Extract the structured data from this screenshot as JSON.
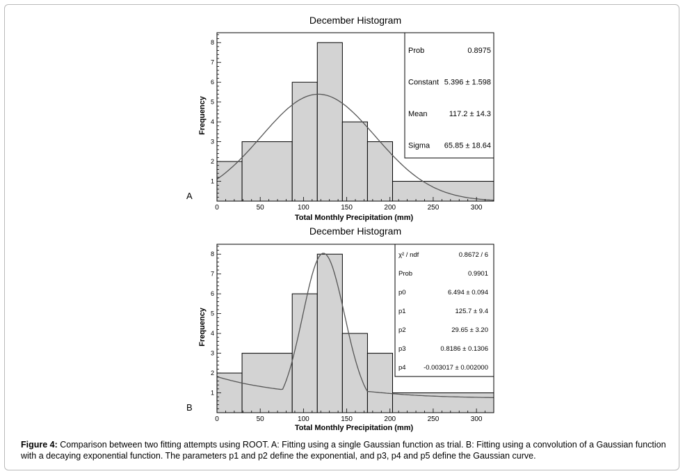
{
  "caption": {
    "label": "Figure 4:",
    "text": " Comparison between two fitting attempts using ROOT. A: Fitting using a single Gaussian function as trial. B: Fitting using a convolution of a Gaussian function with a decaying exponential function. The parameters p1 and p2 define the exponential, and p3, p4 and p5 define the Gaussian curve."
  },
  "colors": {
    "bar_fill": "#d3d3d3",
    "stroke": "#000000",
    "curve": "#555555"
  },
  "chart_data": [
    {
      "type": "bar",
      "panel_label": "A",
      "title": "December Histogram",
      "xlabel": "Total Monthly Precipitation (mm)",
      "ylabel": "Frequency",
      "xlim": [
        0,
        320
      ],
      "ylim": [
        0,
        8.5
      ],
      "xticks": [
        0,
        50,
        100,
        150,
        200,
        250,
        300
      ],
      "yticks": [
        1,
        2,
        3,
        4,
        5,
        6,
        7,
        8
      ],
      "bins": [
        {
          "x0": 0,
          "x1": 29,
          "count": 2
        },
        {
          "x0": 29,
          "x1": 87,
          "count": 3
        },
        {
          "x0": 87,
          "x1": 116,
          "count": 6
        },
        {
          "x0": 116,
          "x1": 145,
          "count": 8
        },
        {
          "x0": 145,
          "x1": 174,
          "count": 4
        },
        {
          "x0": 174,
          "x1": 203,
          "count": 3
        },
        {
          "x0": 203,
          "x1": 320,
          "count": 1
        }
      ],
      "fit": {
        "model": "gaussian",
        "constant": 5.396,
        "mean": 117.2,
        "sigma": 65.85
      },
      "stats": [
        {
          "label": "Prob",
          "value": "0.8975"
        },
        {
          "label": "Constant",
          "value": "5.396 ± 1.598"
        },
        {
          "label": "Mean",
          "value": "117.2 ± 14.3"
        },
        {
          "label": "Sigma",
          "value": "65.85 ± 18.64"
        }
      ]
    },
    {
      "type": "bar",
      "panel_label": "B",
      "title": "December Histogram",
      "xlabel": "Total Monthly Precipitation (mm)",
      "ylabel": "Frequency",
      "xlim": [
        0,
        320
      ],
      "ylim": [
        0,
        8.5
      ],
      "xticks": [
        0,
        50,
        100,
        150,
        200,
        250,
        300
      ],
      "yticks": [
        1,
        2,
        3,
        4,
        5,
        6,
        7,
        8
      ],
      "bins": [
        {
          "x0": 0,
          "x1": 29,
          "count": 2
        },
        {
          "x0": 29,
          "x1": 87,
          "count": 3
        },
        {
          "x0": 87,
          "x1": 116,
          "count": 6
        },
        {
          "x0": 116,
          "x1": 145,
          "count": 8
        },
        {
          "x0": 145,
          "x1": 174,
          "count": 4
        },
        {
          "x0": 174,
          "x1": 203,
          "count": 3
        },
        {
          "x0": 203,
          "x1": 320,
          "count": 1
        }
      ],
      "fit": {
        "model": "gaussian-exponential",
        "p0": 6.494,
        "p1": 125.7,
        "p2": 29.65,
        "p3": 0.8186,
        "p4": -0.003017
      },
      "stats": [
        {
          "label": "χ² / ndf",
          "value": "0.8672 / 6"
        },
        {
          "label": "Prob",
          "value": "0.9901"
        },
        {
          "label": "p0",
          "value": "6.494 ± 0.094"
        },
        {
          "label": "p1",
          "value": "125.7 ± 9.4"
        },
        {
          "label": "p2",
          "value": "29.65 ± 3.20"
        },
        {
          "label": "p3",
          "value": "0.8186 ± 0.1306"
        },
        {
          "label": "p4",
          "value": "-0.003017 ± 0.002000"
        }
      ]
    }
  ]
}
